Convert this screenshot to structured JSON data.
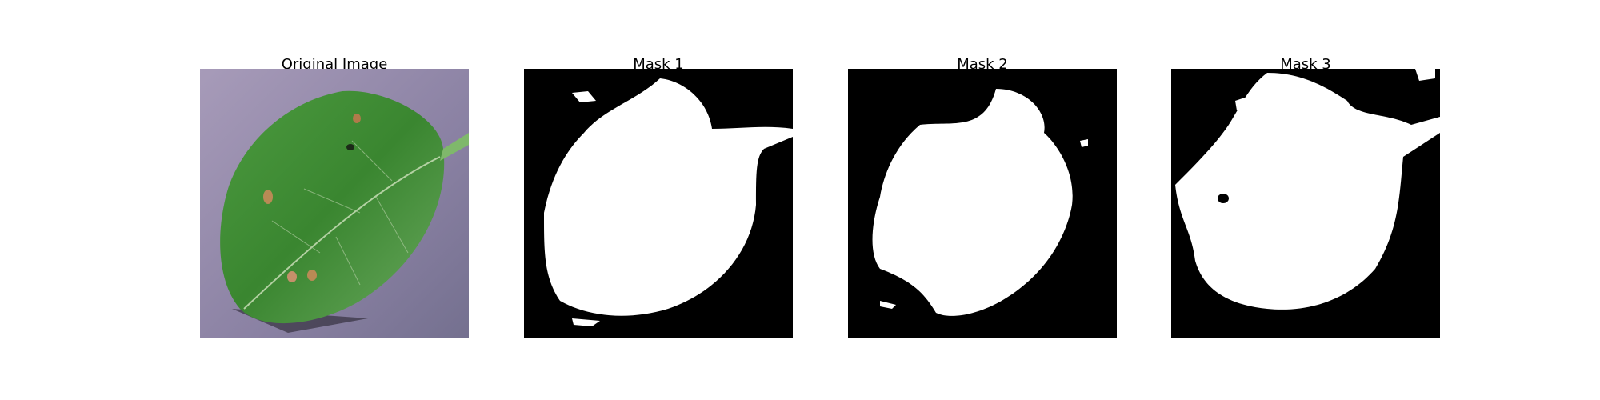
{
  "panels": [
    {
      "title": "Original Image"
    },
    {
      "title": "Mask 1"
    },
    {
      "title": "Mask 2"
    },
    {
      "title": "Mask 3"
    }
  ],
  "colors": {
    "background_surface": "#8d83a6",
    "leaf": "#3d8a35",
    "mask_foreground": "#ffffff",
    "mask_background": "#000000"
  }
}
